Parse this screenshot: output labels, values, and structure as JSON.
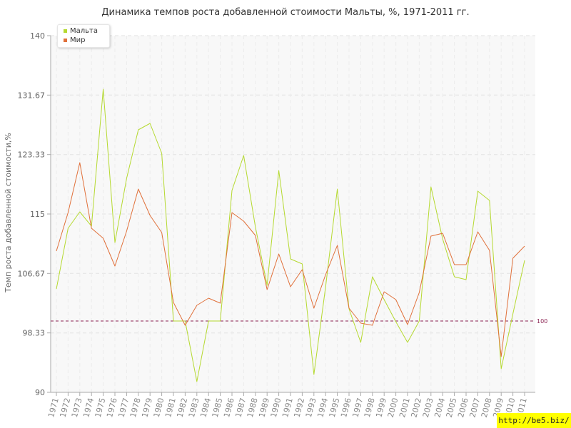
{
  "chart_data": {
    "type": "line",
    "title": "Динамика темпов роста добавленной стоимости Мальты, %, 1971-2011 гг.",
    "ylabel": "Темп роста добавленной стоимости,%",
    "xlabel": "",
    "ylim": [
      90,
      140
    ],
    "yticks": [
      "90",
      "98.33",
      "106.67",
      "115",
      "123.33",
      "131.67",
      "140"
    ],
    "x": [
      "1971",
      "1972",
      "1973",
      "1974",
      "1975",
      "1976",
      "1977",
      "1978",
      "1979",
      "1980",
      "1981",
      "1982",
      "1983",
      "1984",
      "1985",
      "1986",
      "1987",
      "1988",
      "1989",
      "1990",
      "1991",
      "1992",
      "1993",
      "1994",
      "1995",
      "1996",
      "1997",
      "1998",
      "1999",
      "2000",
      "2001",
      "2002",
      "2003",
      "2004",
      "2005",
      "2006",
      "2007",
      "2008",
      "2009",
      "2010",
      "2011"
    ],
    "series": [
      {
        "name": "Мальта",
        "color": "#b5d930",
        "values": [
          104.5,
          113,
          115.3,
          113.3,
          132.5,
          111,
          120,
          126.8,
          127.7,
          123.5,
          100,
          100,
          91.5,
          100,
          100,
          118.3,
          123.2,
          113.2,
          105,
          121.1,
          108.7,
          108,
          92.5,
          104.8,
          118.5,
          101.7,
          97,
          106.2,
          103,
          99.9,
          97,
          100,
          118.8,
          111.5,
          106.2,
          105.8,
          118.2,
          116.9,
          93.3,
          101,
          108.5
        ]
      },
      {
        "name": "Мир",
        "color": "#e0703a",
        "values": [
          109.8,
          115.2,
          122.2,
          113,
          111.6,
          107.7,
          112.6,
          118.5,
          114.8,
          112.4,
          102.6,
          99.4,
          102.2,
          103.2,
          102.5,
          115.2,
          114,
          112,
          104.4,
          109.4,
          104.8,
          107.2,
          101.8,
          106.5,
          110.6,
          101.8,
          99.7,
          99.4,
          104.1,
          103,
          99.5,
          104,
          111.9,
          112.3,
          107.9,
          107.9,
          112.5,
          109.9,
          95,
          108.8,
          110.5
        ]
      }
    ],
    "reference_line": {
      "value": 100,
      "label": "100",
      "color": "#8b2252"
    },
    "legend_position": "top-left",
    "grid": true
  },
  "watermark": "http://be5.biz/"
}
